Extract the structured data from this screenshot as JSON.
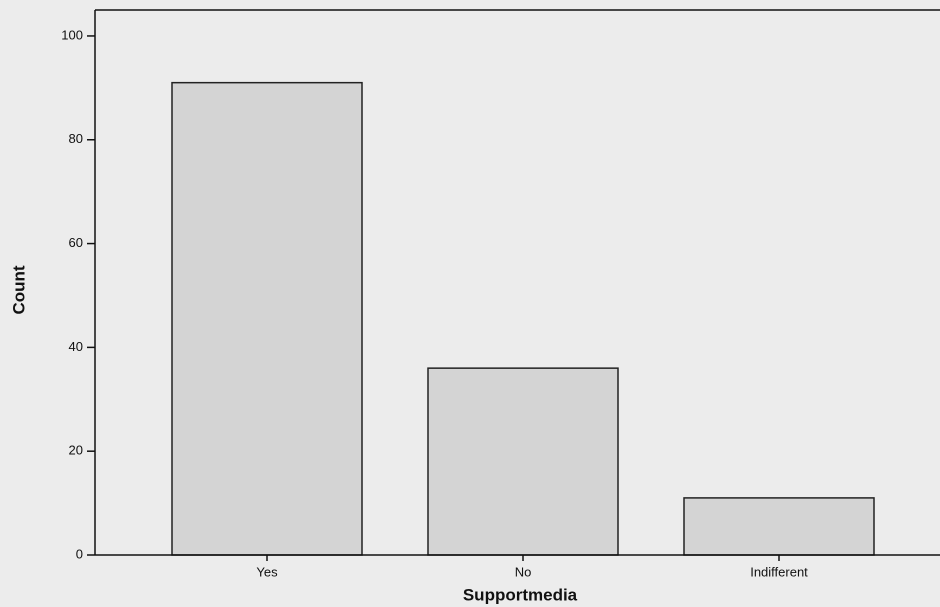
{
  "chart_data": {
    "type": "bar",
    "categories": [
      "Yes",
      "No",
      "Indifferent"
    ],
    "values": [
      91,
      36,
      11
    ],
    "color": "#d4d4d4",
    "xlabel": "Supportmedia",
    "ylabel": "Count",
    "ylim": [
      0,
      105
    ],
    "yticks": [
      0,
      20,
      40,
      60,
      80,
      100
    ],
    "grid": false
  }
}
